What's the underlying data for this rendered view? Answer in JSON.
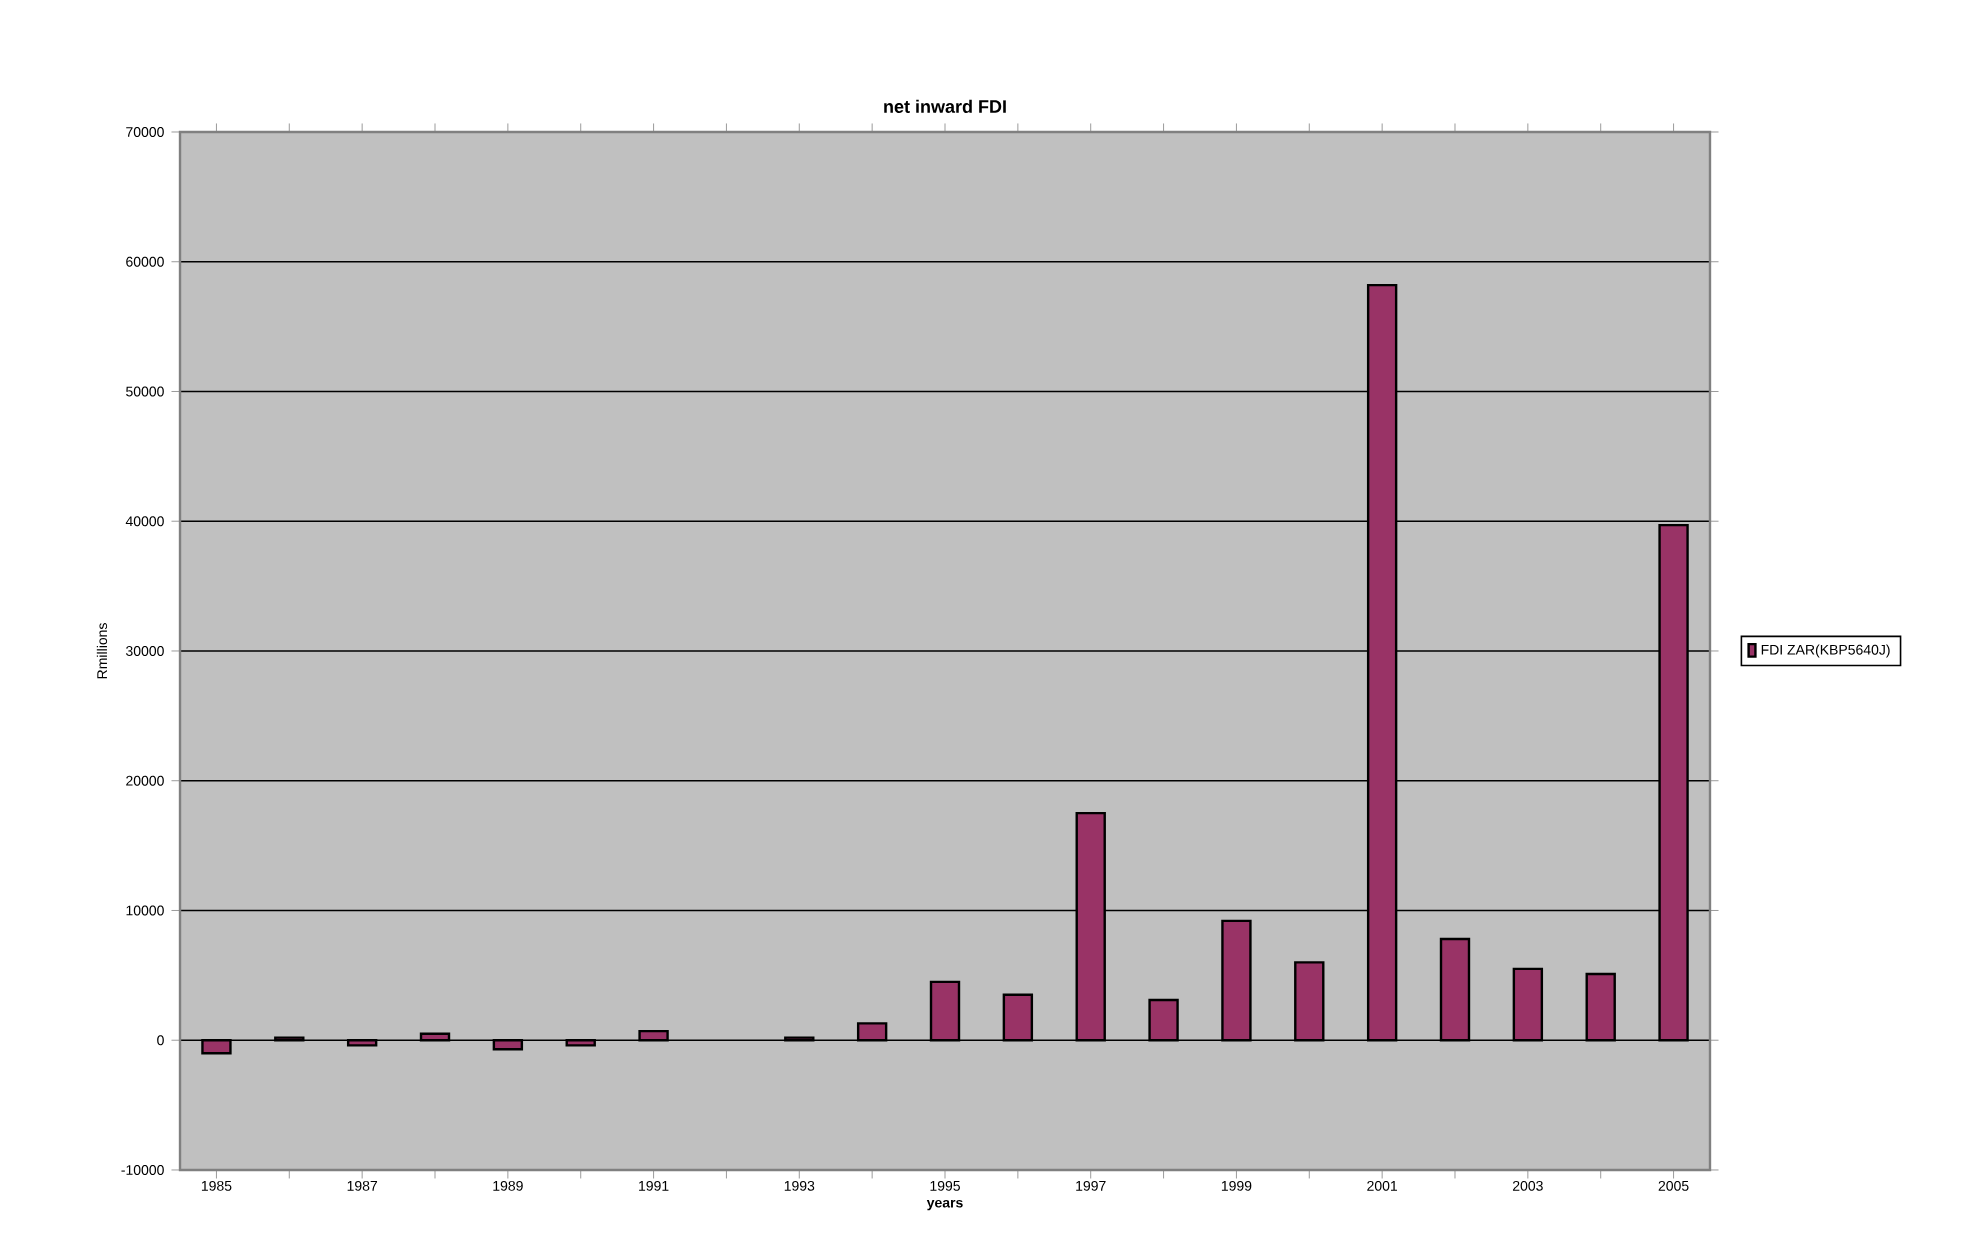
{
  "chart_data": {
    "type": "bar",
    "title": "net inward FDI",
    "xlabel": "years",
    "ylabel": "Rmillions",
    "categories": [
      "1985",
      null,
      "1987",
      null,
      "1989",
      null,
      "1991",
      null,
      "1993",
      null,
      "1995",
      null,
      "1997",
      null,
      "1999",
      null,
      "2001",
      null,
      "2003",
      null,
      "2005"
    ],
    "series": [
      {
        "name": "FDI ZAR(KBP5640J)",
        "color": "#993366",
        "values": [
          -1000,
          200,
          -400,
          500,
          -700,
          -400,
          700,
          null,
          200,
          1300,
          4500,
          3500,
          17500,
          3100,
          9200,
          6000,
          58200,
          7800,
          5500,
          5100,
          39700
        ]
      }
    ],
    "ylim": [
      -10000,
      70000
    ],
    "yticks": [
      -10000,
      0,
      10000,
      20000,
      30000,
      40000,
      50000,
      60000,
      70000
    ],
    "grid": "y",
    "legend": "right"
  }
}
